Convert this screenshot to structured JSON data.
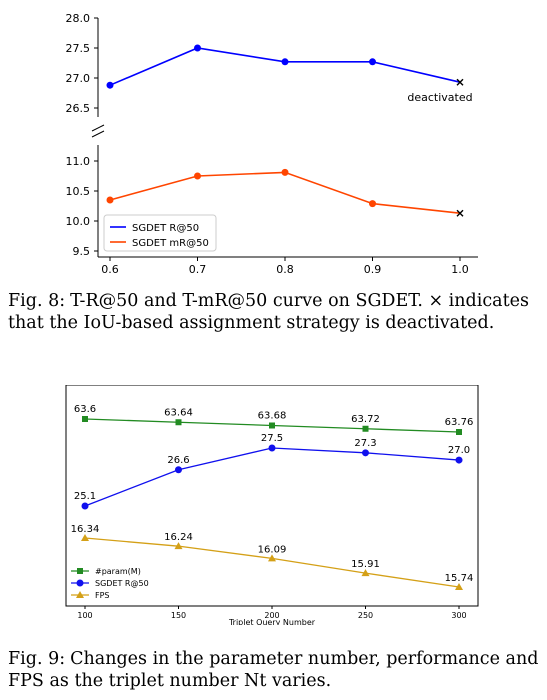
{
  "chart_data": [
    {
      "type": "line",
      "broken_axis": true,
      "x": [
        0.6,
        0.7,
        0.8,
        0.9,
        1.0
      ],
      "xticks": [
        "0.6",
        "0.7",
        "0.8",
        "0.9",
        "1.0"
      ],
      "upper_panel": {
        "ylim": [
          26.3,
          28.0
        ],
        "yticks": [
          "28.0",
          "27.5",
          "27.0",
          "26.5"
        ],
        "series": [
          {
            "name": "SGDET R@50",
            "color": "#0000ff",
            "values": [
              26.88,
              27.5,
              27.27,
              27.27,
              26.93
            ],
            "markers": [
              "dot",
              "dot",
              "dot",
              "dot",
              "x"
            ]
          }
        ]
      },
      "lower_panel": {
        "ylim": [
          9.5,
          11.2
        ],
        "yticks": [
          "11.0",
          "10.5",
          "10.0",
          "9.5"
        ],
        "series": [
          {
            "name": "SGDET mR@50",
            "color": "#ff4500",
            "values": [
              10.35,
              10.75,
              10.81,
              10.29,
              10.13
            ],
            "markers": [
              "dot",
              "dot",
              "dot",
              "dot",
              "x"
            ]
          }
        ]
      },
      "annotation": "deactivated",
      "legend": {
        "placement": "lower-left",
        "entries": [
          "SGDET R@50",
          "SGDET mR@50"
        ]
      },
      "grid": false
    },
    {
      "type": "line",
      "x": [
        100,
        150,
        200,
        250,
        300
      ],
      "xticks": [
        "100",
        "150",
        "200",
        "250",
        "300"
      ],
      "xlabel": "Triplet Query Number",
      "series": [
        {
          "name": "#param(M)",
          "color": "#228b22",
          "marker": "square",
          "values": [
            63.6,
            63.64,
            63.68,
            63.72,
            63.76
          ],
          "labels": [
            "63.6",
            "63.64",
            "63.68",
            "63.72",
            "63.76"
          ]
        },
        {
          "name": "SGDET R@50",
          "color": "#1010ee",
          "marker": "dot",
          "values": [
            25.1,
            26.6,
            27.5,
            27.3,
            27.0
          ],
          "labels": [
            "25.1",
            "26.6",
            "27.5",
            "27.3",
            "27.0"
          ]
        },
        {
          "name": "FPS",
          "color": "#d4a017",
          "marker": "triangle",
          "values": [
            16.34,
            16.24,
            16.09,
            15.91,
            15.74
          ],
          "labels": [
            "16.34",
            "16.24",
            "16.09",
            "15.91",
            "15.74"
          ]
        }
      ],
      "legend": {
        "placement": "lower-left",
        "entries": [
          "#param(M)",
          "SGDET R@50",
          "FPS"
        ]
      },
      "grid": false
    }
  ],
  "captions": {
    "fig8": {
      "label": "Fig. 8:",
      "text": "T-R@50 and T-mR@50 curve on SGDET. × indicates that the IoU-based assignment strategy is deactivated."
    },
    "fig9": {
      "label": "Fig. 9:",
      "text": "Changes in the parameter number, performance and FPS as the triplet number Nt varies."
    }
  }
}
